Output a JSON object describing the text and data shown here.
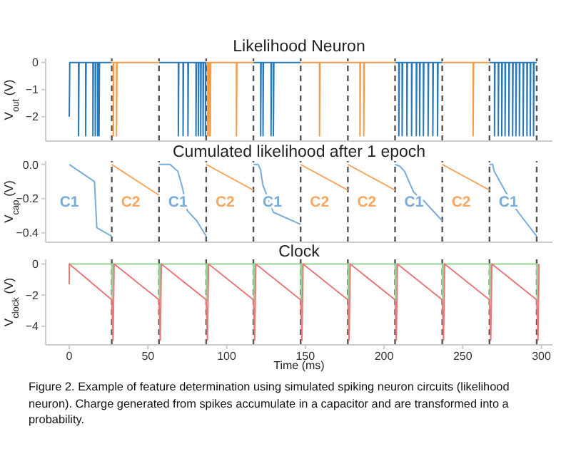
{
  "chart_data": [
    {
      "type": "line",
      "title": "Likelihood Neuron",
      "ylabel": "V$_{out}$ (V)",
      "xlim": [
        -15,
        307
      ],
      "xticks": [
        0,
        50,
        100,
        150,
        200,
        250,
        300
      ],
      "ylim": [
        -2.9,
        0.15
      ],
      "yticks": [
        0,
        {
          "value": -1,
          "label": "−1"
        },
        {
          "value": -2,
          "label": "−2"
        }
      ],
      "tick_labels": "y",
      "series": [
        {
          "color": "#2a7ab9",
          "x": [
            0,
            0.3,
            5.9,
            5.9,
            6.2,
            10.4,
            10.4,
            10.7,
            15,
            15,
            15.3,
            16.5,
            16.5,
            16.8,
            18,
            18,
            18.3,
            18.9,
            18.9,
            19.2,
            27,
            27.5,
            57,
            69.3,
            69.3,
            69.6,
            72.3,
            72.3,
            72.6,
            75.4,
            75.4,
            75.7,
            80.5,
            80.5,
            80.8,
            82,
            82,
            82.3,
            83.5,
            83.5,
            83.8,
            85,
            85,
            85.3,
            86.5,
            86.5,
            86.8,
            87,
            87.5,
            117,
            121.6,
            121.6,
            121.9,
            123.1,
            123.1,
            123.4,
            128.2,
            128.2,
            128.5,
            129.7,
            129.7,
            130,
            147,
            147.5,
            207,
            209.4,
            209.4,
            209.7,
            211.5,
            211.5,
            211.8,
            214.5,
            214.5,
            214.8,
            217.5,
            217.5,
            217.8,
            220.5,
            220.5,
            220.8,
            222.6,
            222.6,
            222.9,
            225,
            225,
            225.3,
            228,
            228,
            228.3,
            231,
            231,
            231.3,
            234,
            234,
            234.3,
            237,
            237.5,
            267,
            270.2,
            270.2,
            270.5,
            272.6,
            272.6,
            272.9,
            274.8,
            274.8,
            275.1,
            276.9,
            276.9,
            277.2,
            279.3,
            279.3,
            279.6,
            281.7,
            281.7,
            282,
            283.8,
            283.8,
            284.1,
            286,
            286,
            286.3,
            288.4,
            288.4,
            288.7,
            290.8,
            290.8,
            291.1,
            292.9,
            292.9,
            293.2,
            295,
            295,
            295.3,
            297
          ],
          "values": [
            -2,
            0,
            0,
            -2.7,
            0,
            0,
            -2.7,
            0,
            0,
            -2.7,
            0,
            0,
            -2.7,
            0,
            0,
            -2.7,
            0,
            0,
            -2.7,
            0,
            0,
            null,
            0,
            0,
            -2.7,
            0,
            0,
            -2.7,
            0,
            0,
            -2.7,
            0,
            0,
            -2.7,
            0,
            0,
            -2.7,
            0,
            0,
            -2.7,
            0,
            0,
            -2.7,
            0,
            0,
            -2.7,
            0,
            0,
            null,
            0,
            0,
            -2.7,
            0,
            0,
            -2.7,
            0,
            0,
            -2.7,
            0,
            0,
            -2.7,
            0,
            0,
            null,
            0,
            0,
            -2.7,
            0,
            0,
            -2.7,
            0,
            0,
            -2.7,
            0,
            0,
            -2.7,
            0,
            0,
            -2.7,
            0,
            0,
            -2.7,
            0,
            0,
            -2.7,
            0,
            0,
            -2.7,
            0,
            0,
            -2.7,
            0,
            0,
            -2.7,
            0,
            0,
            null,
            0,
            0,
            -2.7,
            0,
            0,
            -2.7,
            0,
            0,
            -2.7,
            0,
            0,
            -2.7,
            0,
            0,
            -2.7,
            0,
            0,
            -2.7,
            0,
            0,
            -2.7,
            0,
            0,
            -2.7,
            0,
            0,
            -2.7,
            0,
            0,
            -2.7,
            0,
            0,
            -2.7,
            0,
            0,
            -2.7,
            0,
            0
          ]
        },
        {
          "color": "#f59d4a",
          "x": [
            27,
            28,
            28,
            28.3,
            30,
            30,
            30.3,
            57,
            57.5,
            87,
            88,
            88,
            88.3,
            89,
            89,
            89.3,
            89.6,
            89.6,
            89.9,
            106.2,
            106.2,
            106.5,
            117,
            117.5,
            147,
            159,
            159,
            159.3,
            184.7,
            184.7,
            185,
            187.1,
            187.1,
            187.4,
            207,
            207.5,
            237,
            256.6,
            256.6,
            256.9,
            267
          ],
          "values": [
            0,
            0,
            -2.7,
            0,
            0,
            -2.7,
            0,
            0,
            null,
            0,
            0,
            -2.7,
            0,
            0,
            -2.7,
            0,
            0,
            -2.7,
            0,
            0,
            -2.7,
            0,
            0,
            null,
            0,
            0,
            -2.7,
            0,
            0,
            -2.7,
            0,
            0,
            -2.7,
            0,
            0,
            null,
            0,
            0,
            -2.7,
            0,
            0
          ]
        }
      ],
      "ref_lines": [
        {
          "axis": "x",
          "value": 27,
          "color": "#555555",
          "line_style": "dashed"
        },
        {
          "axis": "x",
          "value": 57,
          "color": "#555555",
          "line_style": "dashed"
        },
        {
          "axis": "x",
          "value": 87,
          "color": "#555555",
          "line_style": "dashed"
        },
        {
          "axis": "x",
          "value": 117,
          "color": "#555555",
          "line_style": "dashed"
        },
        {
          "axis": "x",
          "value": 147,
          "color": "#555555",
          "line_style": "dashed"
        },
        {
          "axis": "x",
          "value": 177,
          "color": "#555555",
          "line_style": "dashed"
        },
        {
          "axis": "x",
          "value": 207,
          "color": "#555555",
          "line_style": "dashed"
        },
        {
          "axis": "x",
          "value": 237,
          "color": "#555555",
          "line_style": "dashed"
        },
        {
          "axis": "x",
          "value": 267,
          "color": "#555555",
          "line_style": "dashed"
        },
        {
          "axis": "x",
          "value": 297,
          "color": "#555555",
          "line_style": "dashed"
        }
      ]
    },
    {
      "type": "line",
      "title": "Cumulated likelihood after 1 epoch",
      "ylabel": "V$_{cap}$ (V)",
      "xlim": [
        -15,
        307
      ],
      "xticks": [
        0,
        50,
        100,
        150,
        200,
        250,
        300
      ],
      "ylim": [
        -0.455,
        0.02
      ],
      "yticks": [
        {
          "value": 0,
          "label": "0.0"
        },
        {
          "value": -0.2,
          "label": "−0.2"
        },
        {
          "value": -0.4,
          "label": "−0.4"
        }
      ],
      "tick_labels": "y",
      "series": [
        {
          "color": "#78acd9",
          "x": [
            0,
            16,
            17.5,
            27
          ],
          "values": [
            0,
            -0.1,
            -0.37,
            -0.42
          ]
        },
        {
          "color": "#f8a862",
          "x": [
            27,
            57
          ],
          "values": [
            0,
            -0.18
          ]
        },
        {
          "color": "#78acd9",
          "x": [
            57,
            64,
            69,
            72,
            75,
            81,
            87
          ],
          "values": [
            0,
            0,
            -0.04,
            -0.14,
            -0.27,
            -0.33,
            -0.42
          ]
        },
        {
          "color": "#f8a862",
          "x": [
            87,
            117
          ],
          "values": [
            0,
            -0.15
          ]
        },
        {
          "color": "#78acd9",
          "x": [
            117,
            120,
            121.5,
            123,
            129.7,
            147
          ],
          "values": [
            0,
            0,
            -0.03,
            -0.12,
            -0.28,
            -0.35
          ]
        },
        {
          "color": "#f8a862",
          "x": [
            147,
            177
          ],
          "values": [
            0,
            -0.15
          ]
        },
        {
          "color": "#f8a862",
          "x": [
            177,
            207
          ],
          "values": [
            0,
            -0.15
          ]
        },
        {
          "color": "#78acd9",
          "x": [
            207,
            210,
            213,
            218.7,
            222,
            225,
            237
          ],
          "values": [
            0,
            -0.01,
            -0.04,
            -0.16,
            -0.19,
            -0.21,
            -0.33
          ]
        },
        {
          "color": "#f8a862",
          "x": [
            237,
            267
          ],
          "values": [
            0,
            -0.15
          ]
        },
        {
          "color": "#78acd9",
          "x": [
            267,
            269,
            270,
            274.8,
            280.8,
            285.3,
            297
          ],
          "values": [
            0,
            0,
            -0.04,
            -0.12,
            -0.22,
            -0.28,
            -0.42
          ]
        }
      ],
      "annotations": [
        "C1",
        "C2",
        "C1",
        "C2",
        "C1",
        "C2",
        "C2",
        "C1",
        "C2",
        "C1"
      ],
      "ref_lines": [
        {
          "axis": "x",
          "value": 27,
          "color": "#555555",
          "line_style": "dashed"
        },
        {
          "axis": "x",
          "value": 57,
          "color": "#555555",
          "line_style": "dashed"
        },
        {
          "axis": "x",
          "value": 87,
          "color": "#555555",
          "line_style": "dashed"
        },
        {
          "axis": "x",
          "value": 117,
          "color": "#555555",
          "line_style": "dashed"
        },
        {
          "axis": "x",
          "value": 147,
          "color": "#555555",
          "line_style": "dashed"
        },
        {
          "axis": "x",
          "value": 177,
          "color": "#555555",
          "line_style": "dashed"
        },
        {
          "axis": "x",
          "value": 207,
          "color": "#555555",
          "line_style": "dashed"
        },
        {
          "axis": "x",
          "value": 237,
          "color": "#555555",
          "line_style": "dashed"
        },
        {
          "axis": "x",
          "value": 267,
          "color": "#555555",
          "line_style": "dashed"
        },
        {
          "axis": "x",
          "value": 297,
          "color": "#555555",
          "line_style": "dashed"
        }
      ]
    },
    {
      "type": "line",
      "title": "Clock",
      "ylabel": "V$_{clock}$ (V)",
      "xlabel": "Time (ms)",
      "xlim": [
        -15,
        307
      ],
      "xticks": [
        0,
        50,
        100,
        150,
        200,
        250,
        300
      ],
      "ylim": [
        -5.2,
        0.3
      ],
      "yticks": [
        0,
        {
          "value": -2,
          "label": "−2"
        },
        {
          "value": -4,
          "label": "−4"
        }
      ],
      "series": [
        {
          "color": "#95d395",
          "x": [
            0,
            27,
            27.3,
            27.8,
            57,
            57.3,
            57.8,
            87,
            87.3,
            87.8,
            117,
            117.3,
            117.8,
            147,
            147.3,
            147.8,
            177,
            177.3,
            177.8,
            207,
            207.3,
            207.8,
            237,
            237.3,
            237.8,
            267,
            267.3,
            267.8,
            297,
            297.3,
            297.8
          ],
          "values": [
            0,
            0,
            -2.4,
            0,
            0,
            -2.4,
            0,
            0,
            -2.4,
            0,
            0,
            -2.4,
            0,
            0,
            -2.4,
            0,
            0,
            -2.4,
            0,
            0,
            -2.4,
            0,
            0,
            -2.4,
            0,
            0,
            -2.4,
            0,
            0,
            -2.4,
            0
          ]
        },
        {
          "color": "#e8787a",
          "x": [
            0,
            0,
            27,
            27.8,
            28.5,
            57,
            57.8,
            58.5,
            87,
            87.8,
            88.5,
            117,
            117.8,
            118.5,
            147,
            147.8,
            148.5,
            177,
            177.8,
            178.5,
            207,
            207.8,
            208.5,
            237,
            237.8,
            238.5,
            267,
            267.8,
            268.5,
            297,
            297.8,
            298.5
          ],
          "values": [
            -1.3,
            0,
            -2.3,
            -4.9,
            0,
            -2.3,
            -4.9,
            0,
            -2.3,
            -4.9,
            0,
            -2.3,
            -4.9,
            0,
            -2.3,
            -4.9,
            0,
            -2.3,
            -4.9,
            0,
            -2.3,
            -4.9,
            0,
            -2.3,
            -4.9,
            0,
            -2.3,
            -4.9,
            0,
            -2.3,
            -4.9,
            0
          ]
        }
      ],
      "ref_lines": [
        {
          "axis": "x",
          "value": 27,
          "color": "#555555",
          "line_style": "dashed"
        },
        {
          "axis": "x",
          "value": 57,
          "color": "#555555",
          "line_style": "dashed"
        },
        {
          "axis": "x",
          "value": 87,
          "color": "#555555",
          "line_style": "dashed"
        },
        {
          "axis": "x",
          "value": 117,
          "color": "#555555",
          "line_style": "dashed"
        },
        {
          "axis": "x",
          "value": 147,
          "color": "#555555",
          "line_style": "dashed"
        },
        {
          "axis": "x",
          "value": 177,
          "color": "#555555",
          "line_style": "dashed"
        },
        {
          "axis": "x",
          "value": 207,
          "color": "#555555",
          "line_style": "dashed"
        },
        {
          "axis": "x",
          "value": 237,
          "color": "#555555",
          "line_style": "dashed"
        },
        {
          "axis": "x",
          "value": 267,
          "color": "#555555",
          "line_style": "dashed"
        },
        {
          "axis": "x",
          "value": 297,
          "color": "#555555",
          "line_style": "dashed"
        }
      ],
      "annotations": [
        "Figure 2. Example of feature determination using simulated spiking neuron circuits (likelihood neuron). Charge generated from spikes accumulate in a capacitor and are transformed into a probability."
      ]
    }
  ]
}
